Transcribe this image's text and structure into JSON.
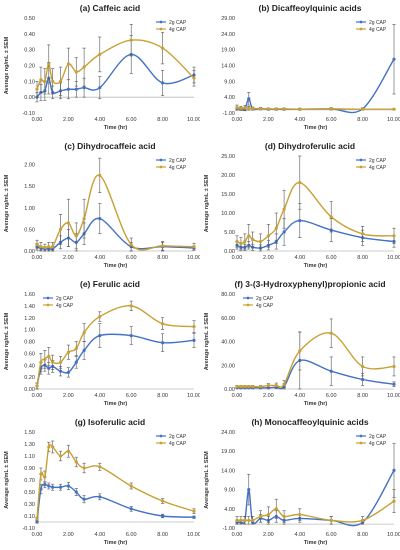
{
  "colors": {
    "s2g": "#4472C4",
    "s4g": "#C9A034",
    "axis": "#BBBBBB",
    "error": "#555555"
  },
  "chart_data": [
    {
      "type": "line",
      "title": "(a) Caffeic acid",
      "xlabel": "Time (hr)",
      "ylabel": "Average ng/mL ± SEM",
      "xlim": [
        0,
        10
      ],
      "ylim": [
        -0.1,
        0.5
      ],
      "xticks": [
        "0.00",
        "2.00",
        "4.00",
        "6.00",
        "8.00",
        "10.00"
      ],
      "yticks": [
        "-0.10",
        "0.00",
        "0.10",
        "0.20",
        "0.30",
        "0.40",
        "0.50"
      ],
      "legend_position": "top-right",
      "x": [
        0,
        0.25,
        0.5,
        0.75,
        1,
        1.5,
        2,
        2.5,
        3,
        4,
        6,
        8,
        10
      ],
      "series": [
        {
          "name": "2g CAP",
          "values": [
            0.0,
            0.03,
            0.04,
            0.12,
            0.03,
            0.04,
            0.05,
            0.05,
            0.06,
            0.06,
            0.27,
            0.09,
            0.14
          ],
          "errors": [
            0.03,
            0.05,
            0.06,
            0.1,
            0.04,
            0.05,
            0.06,
            0.05,
            0.06,
            0.07,
            0.12,
            0.08,
            0.05
          ]
        },
        {
          "name": "4g CAP",
          "values": [
            0.05,
            0.11,
            0.1,
            0.21,
            0.1,
            0.1,
            0.21,
            0.16,
            0.19,
            0.27,
            0.36,
            0.31,
            0.12
          ],
          "errors": [
            0.05,
            0.08,
            0.08,
            0.12,
            0.08,
            0.09,
            0.1,
            0.09,
            0.12,
            0.11,
            0.1,
            0.1,
            0.05
          ]
        }
      ]
    },
    {
      "type": "line",
      "title": "(b) Dicaffeoylquinic  acids",
      "xlabel": "Time (hr)",
      "ylabel": "",
      "xlim": [
        0,
        10
      ],
      "ylim": [
        -1.0,
        29.0
      ],
      "xticks": [
        "0.00",
        "2.00",
        "4.00",
        "6.00",
        "8.00",
        "10.00"
      ],
      "yticks": [
        "-1.00",
        "4.00",
        "9.00",
        "14.00",
        "19.00",
        "24.00",
        "29.00"
      ],
      "legend_position": "top-right",
      "x": [
        0,
        0.25,
        0.5,
        0.75,
        1,
        1.5,
        2,
        2.5,
        3,
        4,
        6,
        8,
        10
      ],
      "series": [
        {
          "name": "2g CAP",
          "values": [
            0.4,
            0.3,
            0.2,
            3.5,
            0.3,
            0.4,
            0.2,
            0.2,
            0.2,
            0.2,
            0.3,
            0.3,
            16.0
          ],
          "errors": [
            0.5,
            0.5,
            0.5,
            2.0,
            0.4,
            0.4,
            0.3,
            0.3,
            0.3,
            0.3,
            0.4,
            0.3,
            11.0
          ]
        },
        {
          "name": "4g CAP",
          "values": [
            0.7,
            0.5,
            0.6,
            0.5,
            0.4,
            0.4,
            0.3,
            0.3,
            0.3,
            0.2,
            0.3,
            0.2,
            0.2
          ],
          "errors": [
            0.8,
            0.6,
            0.7,
            0.6,
            0.5,
            0.4,
            0.3,
            0.3,
            0.3,
            0.3,
            0.3,
            0.2,
            0.2
          ]
        }
      ]
    },
    {
      "type": "line",
      "title": "(c) Dihydrocaffeic acid",
      "xlabel": "Time (hr)",
      "ylabel": "Average ng/mL ± SEM",
      "xlim": [
        0,
        10
      ],
      "ylim": [
        0,
        2.2
      ],
      "xticks": [
        "0.00",
        "2.00",
        "4.00",
        "6.00",
        "8.00",
        "10.00"
      ],
      "yticks": [
        "0.00",
        "0.50",
        "1.00",
        "1.50",
        "2.00"
      ],
      "legend_position": "top-right",
      "x": [
        0,
        0.25,
        0.5,
        0.75,
        1,
        1.5,
        2,
        2.5,
        3,
        4,
        6,
        8,
        10
      ],
      "series": [
        {
          "name": "2g CAP",
          "values": [
            0.1,
            0.06,
            0.05,
            0.05,
            0.05,
            0.2,
            0.3,
            0.2,
            0.4,
            0.75,
            0.1,
            0.1,
            0.07
          ],
          "errors": [
            0.08,
            0.05,
            0.05,
            0.05,
            0.05,
            0.15,
            0.2,
            0.2,
            0.25,
            0.35,
            0.1,
            0.1,
            0.05
          ]
        },
        {
          "name": "4g CAP",
          "values": [
            0.15,
            0.1,
            0.08,
            0.1,
            0.1,
            0.5,
            0.65,
            0.35,
            0.75,
            1.75,
            0.15,
            0.12,
            0.1
          ],
          "errors": [
            0.1,
            0.1,
            0.08,
            0.1,
            0.1,
            0.35,
            0.55,
            0.3,
            0.45,
            0.4,
            0.15,
            0.1,
            0.08
          ]
        }
      ]
    },
    {
      "type": "line",
      "title": "(d) Dihydroferulic acid",
      "xlabel": "Time (hr)",
      "ylabel": "Average ng/mL ± SEM",
      "xlim": [
        0,
        10
      ],
      "ylim": [
        0,
        25
      ],
      "xticks": [
        "0.00",
        "2.00",
        "4.00",
        "6.00",
        "8.00",
        "10.00"
      ],
      "yticks": [
        "0.00",
        "5.00",
        "10.00",
        "15.00",
        "20.00",
        "25.00"
      ],
      "legend_position": "top-right",
      "x": [
        0,
        0.25,
        0.5,
        0.75,
        1,
        1.5,
        2,
        2.5,
        3,
        4,
        6,
        8,
        10
      ],
      "series": [
        {
          "name": "2g CAP",
          "values": [
            1.5,
            1.0,
            1.0,
            1.5,
            1.0,
            0.8,
            1.5,
            2.5,
            5.0,
            8.0,
            5.5,
            3.5,
            2.5
          ],
          "errors": [
            1.0,
            0.8,
            0.8,
            1.0,
            0.8,
            0.8,
            1.2,
            2.0,
            3.5,
            4.5,
            3.0,
            2.0,
            1.5
          ]
        },
        {
          "name": "4g CAP",
          "values": [
            2.5,
            2.0,
            2.5,
            4.0,
            3.0,
            2.5,
            4.0,
            6.0,
            11.0,
            18.0,
            9.0,
            4.5,
            4.0
          ],
          "errors": [
            1.5,
            1.5,
            2.0,
            3.0,
            2.0,
            2.0,
            3.0,
            4.0,
            5.0,
            7.0,
            4.0,
            2.0,
            2.0
          ]
        }
      ]
    },
    {
      "type": "line",
      "title": "(e) Ferulic acid",
      "xlabel": "Time (hr)",
      "ylabel": "Average ng/mL ± SEM",
      "xlim": [
        0,
        10
      ],
      "ylim": [
        0,
        1.6
      ],
      "xticks": [
        "0.00",
        "2.00",
        "4.00",
        "6.00",
        "8.00",
        "10.00"
      ],
      "yticks": [
        "0.00",
        "0.20",
        "0.40",
        "0.60",
        "0.80",
        "1.00",
        "1.20",
        "1.40",
        "1.60"
      ],
      "legend_position": "top-left",
      "x": [
        0,
        0.25,
        0.5,
        0.75,
        1,
        1.5,
        2,
        2.5,
        3,
        4,
        6,
        8,
        10
      ],
      "series": [
        {
          "name": "2g CAP",
          "values": [
            0.05,
            0.35,
            0.4,
            0.35,
            0.38,
            0.3,
            0.28,
            0.45,
            0.65,
            0.9,
            0.9,
            0.78,
            0.82
          ],
          "errors": [
            0.05,
            0.1,
            0.1,
            0.1,
            0.1,
            0.08,
            0.08,
            0.1,
            0.15,
            0.2,
            0.15,
            0.15,
            0.12
          ]
        },
        {
          "name": "4g CAP",
          "values": [
            0.05,
            0.45,
            0.5,
            0.55,
            0.45,
            0.45,
            0.62,
            0.68,
            0.95,
            1.22,
            1.4,
            1.1,
            1.05
          ],
          "errors": [
            0.05,
            0.15,
            0.15,
            0.15,
            0.12,
            0.1,
            0.12,
            0.12,
            0.15,
            0.08,
            0.08,
            0.1,
            0.1
          ]
        }
      ]
    },
    {
      "type": "line",
      "title": "(f) 3-(3-Hydroxyphenyl)propionic  acid",
      "xlabel": "Time (hr)",
      "ylabel": "Average ng/mL ± SEM",
      "xlim": [
        0,
        10
      ],
      "ylim": [
        0,
        80
      ],
      "xticks": [
        "0.00",
        "2.00",
        "4.00",
        "6.00",
        "8.00",
        "10.00"
      ],
      "yticks": [
        "0.00",
        "20.00",
        "40.00",
        "60.00",
        "80.00"
      ],
      "legend_position": "top-left",
      "x": [
        0,
        0.25,
        0.5,
        0.75,
        1,
        1.5,
        2,
        2.5,
        3,
        4,
        6,
        8,
        10
      ],
      "series": [
        {
          "name": "2g CAP",
          "values": [
            1.0,
            1.0,
            1.0,
            1.0,
            1.0,
            1.0,
            1.0,
            1.5,
            2.0,
            24.0,
            15.0,
            8.0,
            4.0
          ],
          "errors": [
            0.5,
            0.5,
            0.5,
            0.5,
            0.5,
            0.5,
            0.5,
            1.0,
            2.0,
            24.0,
            12.0,
            5.0,
            2.0
          ]
        },
        {
          "name": "4g CAP",
          "values": [
            2.0,
            2.0,
            2.0,
            2.0,
            2.0,
            2.0,
            3.0,
            3.0,
            4.0,
            32.0,
            47.0,
            19.0,
            19.0
          ],
          "errors": [
            1.0,
            1.0,
            1.0,
            1.0,
            1.0,
            1.0,
            1.5,
            2.0,
            3.0,
            16.0,
            12.0,
            8.0,
            8.0
          ]
        }
      ]
    },
    {
      "type": "line",
      "title": "(g) Isoferulic acid",
      "xlabel": "Time (hr)",
      "ylabel": "Average ng/mL ± SEM",
      "xlim": [
        0,
        10
      ],
      "ylim": [
        -0.1,
        1.5
      ],
      "xticks": [
        "0.00",
        "2.00",
        "4.00",
        "6.00",
        "8.00",
        "10.00"
      ],
      "yticks": [
        "-0.10",
        "0.10",
        "0.30",
        "0.50",
        "0.70",
        "0.90",
        "1.10",
        "1.30",
        "1.50"
      ],
      "legend_position": "top-right",
      "x": [
        0,
        0.25,
        0.5,
        0.75,
        1,
        1.5,
        2,
        2.5,
        3,
        4,
        6,
        8,
        10
      ],
      "series": [
        {
          "name": "2g CAP",
          "values": [
            0.0,
            0.55,
            0.62,
            0.6,
            0.58,
            0.58,
            0.6,
            0.5,
            0.38,
            0.42,
            0.22,
            0.1,
            0.08
          ],
          "errors": [
            0.02,
            0.08,
            0.05,
            0.05,
            0.05,
            0.05,
            0.06,
            0.06,
            0.06,
            0.05,
            0.04,
            0.03,
            0.02
          ]
        },
        {
          "name": "4g CAP",
          "values": [
            0.05,
            0.8,
            0.75,
            1.25,
            1.25,
            1.1,
            1.18,
            1.0,
            0.9,
            0.92,
            0.6,
            0.35,
            0.18
          ],
          "errors": [
            0.03,
            0.1,
            0.1,
            0.08,
            0.1,
            0.08,
            0.1,
            0.08,
            0.08,
            0.06,
            0.05,
            0.04,
            0.04
          ]
        }
      ]
    },
    {
      "type": "line",
      "title": "(h) Monocaffeoylquinic  acids",
      "xlabel": "Time (hr)",
      "ylabel": "Average ng/mL ± SEM",
      "xlim": [
        0,
        10
      ],
      "ylim": [
        -1.0,
        24.0
      ],
      "xticks": [
        "0.00",
        "2.00",
        "4.00",
        "6.00",
        "8.00",
        "10.00"
      ],
      "yticks": [
        "-1.00",
        "4.00",
        "9.00",
        "14.00",
        "19.00",
        "24.00"
      ],
      "legend_position": "top-right",
      "x": [
        0,
        0.25,
        0.5,
        0.75,
        1,
        1.5,
        2,
        2.5,
        3,
        4,
        6,
        8,
        10
      ],
      "series": [
        {
          "name": "2g CAP",
          "values": [
            0.5,
            0.5,
            1.0,
            9.0,
            0.5,
            1.5,
            1.0,
            2.0,
            1.0,
            1.5,
            1.0,
            0.5,
            14.0
          ],
          "errors": [
            0.5,
            0.5,
            1.0,
            4.0,
            0.5,
            1.0,
            1.0,
            1.5,
            1.0,
            1.0,
            1.0,
            0.5,
            7.0
          ]
        },
        {
          "name": "4g CAP",
          "values": [
            1.0,
            1.0,
            1.0,
            1.0,
            1.0,
            2.0,
            2.5,
            4.0,
            2.0,
            2.5,
            1.0,
            1.0,
            6.0
          ],
          "errors": [
            1.0,
            1.0,
            1.0,
            1.0,
            1.0,
            1.5,
            2.0,
            2.5,
            1.5,
            1.5,
            1.0,
            1.0,
            3.0
          ]
        }
      ]
    }
  ]
}
